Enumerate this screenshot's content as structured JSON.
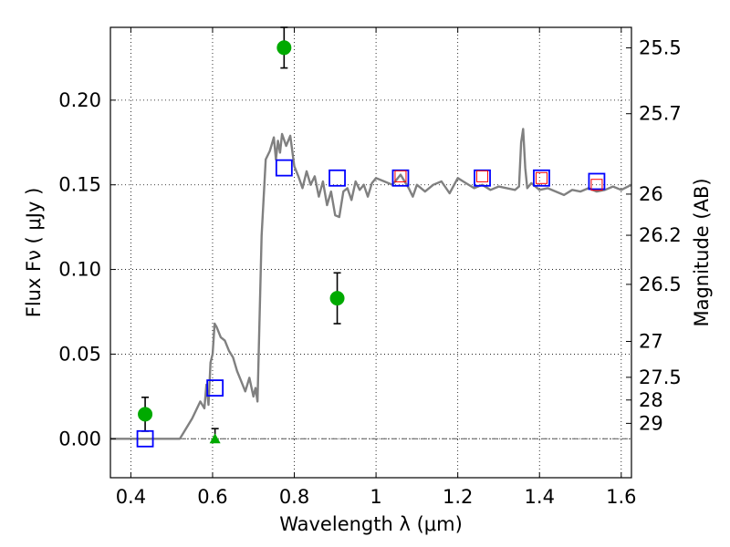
{
  "chart_data": {
    "type": "scatter",
    "xlabel": "Wavelength  λ (μm)",
    "ylabel": "Flux  Fν  ( μJy )",
    "y2label": "Magnitude (AB)",
    "xlim": [
      0.35,
      1.625
    ],
    "ylim": [
      -0.023,
      0.243
    ],
    "grid": true,
    "x_ticks": [
      0.4,
      0.6,
      0.8,
      1.0,
      1.2,
      1.4,
      1.6
    ],
    "x_tick_labels": [
      "0.4",
      "0.6",
      "0.8",
      "1",
      "1.2",
      "1.4",
      "1.6"
    ],
    "y_ticks": [
      0.0,
      0.05,
      0.1,
      0.15,
      0.2
    ],
    "y_tick_labels": [
      "0.00",
      "0.05",
      "0.10",
      "0.15",
      "0.20"
    ],
    "mag_ticks": [
      {
        "label": "25.5",
        "flux": 0.2309
      },
      {
        "label": "25.7",
        "flux": 0.192
      },
      {
        "label": "26",
        "flux": 0.1445
      },
      {
        "label": "26.2",
        "flux": 0.1202
      },
      {
        "label": "26.5",
        "flux": 0.0912
      },
      {
        "label": "27",
        "flux": 0.0575
      },
      {
        "label": "27.5",
        "flux": 0.0363
      },
      {
        "label": "28",
        "flux": 0.0229
      },
      {
        "label": "29",
        "flux": 0.0091
      }
    ],
    "colors": {
      "template": "#808080",
      "photometry": "#00aa00",
      "model_box": "#0000ff",
      "model_box_small": "#ff0000",
      "zero_line": "#555555"
    },
    "series": [
      {
        "type": "line",
        "x": [
          0.35,
          0.52,
          0.53,
          0.55,
          0.57,
          0.58,
          0.585,
          0.59,
          0.595,
          0.6,
          0.605,
          0.61,
          0.62,
          0.63,
          0.64,
          0.65,
          0.66,
          0.67,
          0.68,
          0.69,
          0.7,
          0.705,
          0.71,
          0.72,
          0.73,
          0.74,
          0.75,
          0.755,
          0.76,
          0.765,
          0.77,
          0.78,
          0.79,
          0.8,
          0.81,
          0.82,
          0.83,
          0.84,
          0.85,
          0.86,
          0.87,
          0.88,
          0.89,
          0.9,
          0.91,
          0.92,
          0.93,
          0.94,
          0.95,
          0.96,
          0.97,
          0.98,
          0.99,
          1.0,
          1.02,
          1.04,
          1.06,
          1.08,
          1.09,
          1.1,
          1.12,
          1.14,
          1.16,
          1.18,
          1.2,
          1.22,
          1.24,
          1.26,
          1.28,
          1.3,
          1.32,
          1.34,
          1.35,
          1.355,
          1.36,
          1.365,
          1.37,
          1.38,
          1.4,
          1.42,
          1.44,
          1.46,
          1.48,
          1.5,
          1.52,
          1.54,
          1.56,
          1.58,
          1.6,
          1.625
        ],
        "y": [
          0.0,
          0.0,
          0.004,
          0.012,
          0.022,
          0.018,
          0.032,
          0.02,
          0.045,
          0.05,
          0.068,
          0.066,
          0.06,
          0.058,
          0.052,
          0.048,
          0.04,
          0.034,
          0.028,
          0.036,
          0.025,
          0.03,
          0.022,
          0.12,
          0.165,
          0.17,
          0.178,
          0.165,
          0.176,
          0.169,
          0.18,
          0.173,
          0.179,
          0.161,
          0.155,
          0.148,
          0.158,
          0.15,
          0.155,
          0.143,
          0.152,
          0.138,
          0.146,
          0.132,
          0.131,
          0.146,
          0.148,
          0.141,
          0.152,
          0.147,
          0.15,
          0.143,
          0.151,
          0.154,
          0.152,
          0.15,
          0.156,
          0.148,
          0.143,
          0.15,
          0.146,
          0.15,
          0.152,
          0.145,
          0.154,
          0.151,
          0.148,
          0.15,
          0.147,
          0.149,
          0.148,
          0.147,
          0.149,
          0.175,
          0.183,
          0.16,
          0.148,
          0.151,
          0.147,
          0.148,
          0.146,
          0.144,
          0.147,
          0.146,
          0.148,
          0.146,
          0.147,
          0.149,
          0.147,
          0.15
        ]
      },
      {
        "type": "scatter",
        "marker": "circle",
        "x": [
          0.435,
          0.775,
          0.905
        ],
        "y": [
          0.0145,
          0.231,
          0.083
        ],
        "yerr": [
          0.01,
          0.012,
          0.015
        ]
      },
      {
        "type": "scatter",
        "marker": "triangle",
        "x": [
          0.606
        ],
        "y": [
          0.0
        ],
        "yerr_up": [
          0.006
        ]
      },
      {
        "type": "scatter",
        "marker": "open-square-large",
        "x": [
          0.435,
          0.606,
          0.775,
          0.905,
          1.06,
          1.26,
          1.405,
          1.54
        ],
        "y": [
          0.0,
          0.03,
          0.16,
          0.154,
          0.154,
          0.154,
          0.154,
          0.152
        ]
      },
      {
        "type": "scatter",
        "marker": "open-square-small",
        "x": [
          1.06,
          1.26,
          1.405,
          1.54
        ],
        "y": [
          0.155,
          0.155,
          0.154,
          0.15
        ]
      }
    ]
  }
}
